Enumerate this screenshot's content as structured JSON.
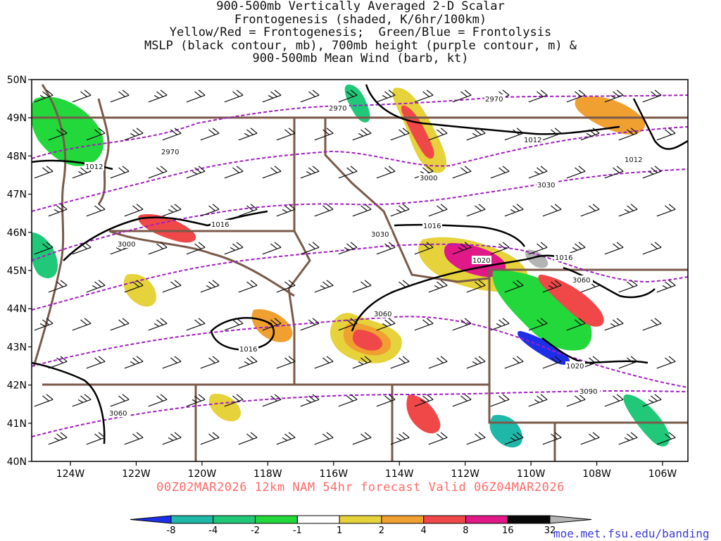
{
  "title_lines": [
    "900-500mb Vertically Averaged 2-D Scalar",
    "Frontogenesis (shaded, K/6hr/100km)",
    "Yellow/Red = Frontogenesis;  Green/Blue = Frontolysis",
    "MSLP (black contour, mb), 700mb height (purple contour, m) &",
    "900-500mb Mean Wind (barb, kt)"
  ],
  "lat_labels": [
    "50N",
    "49N",
    "48N",
    "47N",
    "46N",
    "45N",
    "44N",
    "43N",
    "42N",
    "41N",
    "40N"
  ],
  "lon_labels": [
    "124W",
    "122W",
    "120W",
    "118W",
    "116W",
    "114W",
    "112W",
    "110W",
    "108W",
    "106W"
  ],
  "footer": "00Z02MAR2026 12km NAM 54hr forecast Valid 06Z04MAR2026",
  "url": "moe.met.fsu.edu/banding",
  "colorbar": {
    "labels": [
      "-8",
      "-4",
      "-2",
      "-1",
      "1",
      "2",
      "4",
      "8",
      "16",
      "32"
    ],
    "colors": [
      "#1e2ee8",
      "#1fb8a8",
      "#20c878",
      "#22d83a",
      "#ffffff",
      "#e6d23a",
      "#f0a030",
      "#f04848",
      "#e01888",
      "#080808",
      "#b4b4b4"
    ]
  },
  "height_contour_labels": [
    "2970",
    "2970",
    "2970",
    "3000",
    "3030",
    "3030",
    "3060",
    "3060",
    "3090",
    "3000",
    "3060"
  ],
  "mslp_contour_labels": [
    "1012",
    "1012",
    "1016",
    "1016",
    "1016",
    "1020",
    "1016",
    "1020",
    "1012"
  ],
  "colors": {
    "mslp": "#000000",
    "height": "#a020c0",
    "borders": "#7a5a4a",
    "footer": "#ff6a6a",
    "url": "#3a3ad8"
  }
}
